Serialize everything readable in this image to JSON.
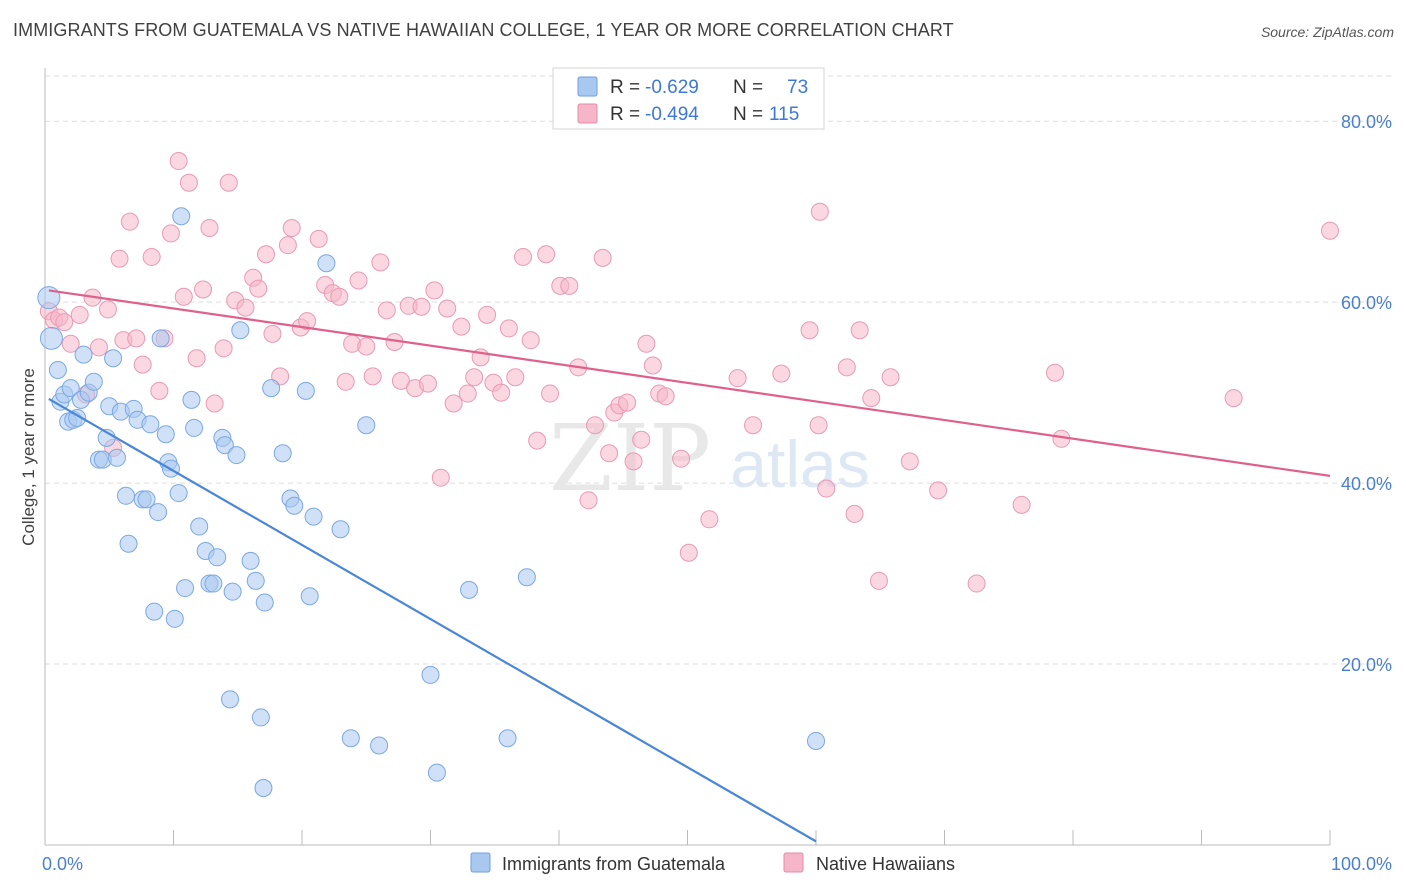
{
  "title": "IMMIGRANTS FROM GUATEMALA VS NATIVE HAWAIIAN COLLEGE, 1 YEAR OR MORE CORRELATION CHART",
  "source": "Source: ZipAtlas.com",
  "watermark": {
    "zip": "ZIP",
    "atlas": "atlas"
  },
  "legend": {
    "rows": [
      {
        "r_label": "R =",
        "r_value": "-0.629",
        "n_label": "N =",
        "n_value": "73",
        "color": "#a9c8f0"
      },
      {
        "r_label": "R =",
        "r_value": "-0.494",
        "n_label": "N =",
        "n_value": "115",
        "color": "#f5b6c9"
      }
    ]
  },
  "bottom_legend": [
    "Immigrants from Guatemala",
    "Native Hawaiians"
  ],
  "chart_data": {
    "type": "scatter",
    "ylabel": "College, 1 year or more",
    "xlim": [
      0,
      100
    ],
    "ylim": [
      0,
      85
    ],
    "x_tick_labels": [
      "0.0%",
      "100.0%"
    ],
    "y_ticks": [
      20,
      40,
      60,
      80
    ],
    "y_tick_labels": [
      "20.0%",
      "40.0%",
      "60.0%",
      "80.0%"
    ],
    "grid": true,
    "colors": {
      "blue": "#4a86d8",
      "blue_fill": "#a9c8f0",
      "pink": "#e0608c",
      "pink_fill": "#f5b6c9",
      "axis_text": "#4a7fd0"
    },
    "series": [
      {
        "name": "Immigrants from Guatemala",
        "trend": [
          [
            0.3,
            49.3
          ],
          [
            60,
            0.4
          ]
        ],
        "points": [
          [
            0.3,
            60.5
          ],
          [
            0.5,
            56.0
          ],
          [
            1.0,
            52.5
          ],
          [
            1.2,
            49.0
          ],
          [
            1.5,
            49.8
          ],
          [
            1.8,
            46.8
          ],
          [
            2.0,
            50.5
          ],
          [
            2.2,
            47.0
          ],
          [
            2.5,
            47.2
          ],
          [
            2.8,
            49.2
          ],
          [
            3.0,
            54.2
          ],
          [
            3.4,
            50.0
          ],
          [
            3.8,
            51.2
          ],
          [
            4.2,
            42.6
          ],
          [
            4.5,
            42.6
          ],
          [
            4.8,
            45.0
          ],
          [
            5.0,
            48.5
          ],
          [
            5.3,
            53.8
          ],
          [
            5.6,
            42.8
          ],
          [
            5.9,
            47.9
          ],
          [
            6.3,
            38.6
          ],
          [
            6.5,
            33.3
          ],
          [
            6.9,
            48.2
          ],
          [
            7.2,
            47.0
          ],
          [
            7.6,
            38.2
          ],
          [
            7.9,
            38.2
          ],
          [
            8.2,
            46.5
          ],
          [
            8.5,
            25.8
          ],
          [
            8.8,
            36.8
          ],
          [
            9.0,
            56.0
          ],
          [
            9.4,
            45.4
          ],
          [
            9.6,
            42.3
          ],
          [
            9.8,
            41.6
          ],
          [
            10.1,
            25.0
          ],
          [
            10.4,
            38.9
          ],
          [
            10.6,
            69.5
          ],
          [
            10.9,
            28.4
          ],
          [
            11.4,
            49.2
          ],
          [
            11.6,
            46.1
          ],
          [
            12.0,
            35.2
          ],
          [
            12.5,
            32.5
          ],
          [
            12.8,
            28.9
          ],
          [
            13.1,
            28.9
          ],
          [
            13.4,
            31.8
          ],
          [
            13.8,
            45.0
          ],
          [
            14.0,
            44.2
          ],
          [
            14.4,
            16.1
          ],
          [
            14.6,
            28.0
          ],
          [
            14.9,
            43.1
          ],
          [
            15.2,
            56.9
          ],
          [
            16.0,
            31.4
          ],
          [
            16.4,
            29.2
          ],
          [
            16.8,
            14.1
          ],
          [
            17.1,
            26.8
          ],
          [
            17.6,
            50.5
          ],
          [
            18.5,
            43.3
          ],
          [
            19.1,
            38.3
          ],
          [
            19.4,
            37.5
          ],
          [
            20.3,
            50.2
          ],
          [
            20.6,
            27.5
          ],
          [
            20.9,
            36.3
          ],
          [
            21.9,
            64.3
          ],
          [
            23.0,
            34.9
          ],
          [
            23.8,
            11.8
          ],
          [
            25.0,
            46.4
          ],
          [
            17.0,
            6.3
          ],
          [
            26.0,
            11.0
          ],
          [
            30.0,
            18.8
          ],
          [
            30.5,
            8.0
          ],
          [
            33.0,
            28.2
          ],
          [
            36.0,
            11.8
          ],
          [
            37.5,
            29.6
          ],
          [
            60.0,
            11.5
          ]
        ]
      },
      {
        "name": "Native Hawaiians",
        "trend": [
          [
            0.3,
            61.3
          ],
          [
            100,
            40.8
          ]
        ],
        "points": [
          [
            0.3,
            59.0
          ],
          [
            0.7,
            58.0
          ],
          [
            1.1,
            58.3
          ],
          [
            1.5,
            57.8
          ],
          [
            2.0,
            55.4
          ],
          [
            2.7,
            58.6
          ],
          [
            3.2,
            49.8
          ],
          [
            3.7,
            60.5
          ],
          [
            4.2,
            55.0
          ],
          [
            4.9,
            59.2
          ],
          [
            5.3,
            43.9
          ],
          [
            5.8,
            64.8
          ],
          [
            6.1,
            55.8
          ],
          [
            6.6,
            68.9
          ],
          [
            7.1,
            56.0
          ],
          [
            7.6,
            53.1
          ],
          [
            8.3,
            65.0
          ],
          [
            8.9,
            50.2
          ],
          [
            9.3,
            56.0
          ],
          [
            9.8,
            67.6
          ],
          [
            10.4,
            75.6
          ],
          [
            10.8,
            60.6
          ],
          [
            11.2,
            73.2
          ],
          [
            11.8,
            53.8
          ],
          [
            12.3,
            61.4
          ],
          [
            12.8,
            68.2
          ],
          [
            13.2,
            48.8
          ],
          [
            13.9,
            54.9
          ],
          [
            14.3,
            73.2
          ],
          [
            14.8,
            60.2
          ],
          [
            15.6,
            59.4
          ],
          [
            16.2,
            62.7
          ],
          [
            16.6,
            61.5
          ],
          [
            17.2,
            65.3
          ],
          [
            17.7,
            56.5
          ],
          [
            18.3,
            51.8
          ],
          [
            18.9,
            66.3
          ],
          [
            19.2,
            68.2
          ],
          [
            19.9,
            57.2
          ],
          [
            20.4,
            57.9
          ],
          [
            21.3,
            67.0
          ],
          [
            21.8,
            61.9
          ],
          [
            22.4,
            61.0
          ],
          [
            22.9,
            60.6
          ],
          [
            23.4,
            51.2
          ],
          [
            23.9,
            55.4
          ],
          [
            24.4,
            62.4
          ],
          [
            25.0,
            55.1
          ],
          [
            25.5,
            51.8
          ],
          [
            26.1,
            64.4
          ],
          [
            26.6,
            59.1
          ],
          [
            27.2,
            55.6
          ],
          [
            27.7,
            51.3
          ],
          [
            28.3,
            59.6
          ],
          [
            28.8,
            50.5
          ],
          [
            29.3,
            59.5
          ],
          [
            29.8,
            51.0
          ],
          [
            30.3,
            61.3
          ],
          [
            30.8,
            40.6
          ],
          [
            31.3,
            59.3
          ],
          [
            31.8,
            48.8
          ],
          [
            32.4,
            57.3
          ],
          [
            32.9,
            49.9
          ],
          [
            33.4,
            51.7
          ],
          [
            33.9,
            53.9
          ],
          [
            34.4,
            58.6
          ],
          [
            34.9,
            51.1
          ],
          [
            35.5,
            50.0
          ],
          [
            36.1,
            57.1
          ],
          [
            36.6,
            51.7
          ],
          [
            37.2,
            65.0
          ],
          [
            37.8,
            55.8
          ],
          [
            38.3,
            44.7
          ],
          [
            39.0,
            65.3
          ],
          [
            39.3,
            49.9
          ],
          [
            40.1,
            61.8
          ],
          [
            40.8,
            61.8
          ],
          [
            41.5,
            52.8
          ],
          [
            42.3,
            38.1
          ],
          [
            42.8,
            46.4
          ],
          [
            43.4,
            64.9
          ],
          [
            43.9,
            43.3
          ],
          [
            44.3,
            47.8
          ],
          [
            44.7,
            48.6
          ],
          [
            45.3,
            48.9
          ],
          [
            45.8,
            42.4
          ],
          [
            46.4,
            44.8
          ],
          [
            46.8,
            55.4
          ],
          [
            47.3,
            53.0
          ],
          [
            47.8,
            49.9
          ],
          [
            48.3,
            49.6
          ],
          [
            49.5,
            42.7
          ],
          [
            50.1,
            32.3
          ],
          [
            51.7,
            36.0
          ],
          [
            53.9,
            51.6
          ],
          [
            55.1,
            46.4
          ],
          [
            57.3,
            52.1
          ],
          [
            59.5,
            56.9
          ],
          [
            60.2,
            46.4
          ],
          [
            60.3,
            70.0
          ],
          [
            60.8,
            39.4
          ],
          [
            62.4,
            52.8
          ],
          [
            63.0,
            36.6
          ],
          [
            63.4,
            56.9
          ],
          [
            64.3,
            49.4
          ],
          [
            64.9,
            29.2
          ],
          [
            65.8,
            51.7
          ],
          [
            67.3,
            42.4
          ],
          [
            69.5,
            39.2
          ],
          [
            72.5,
            28.9
          ],
          [
            76.0,
            37.6
          ],
          [
            78.6,
            52.2
          ],
          [
            79.1,
            44.9
          ],
          [
            92.5,
            49.4
          ],
          [
            100.0,
            67.9
          ]
        ]
      }
    ]
  }
}
